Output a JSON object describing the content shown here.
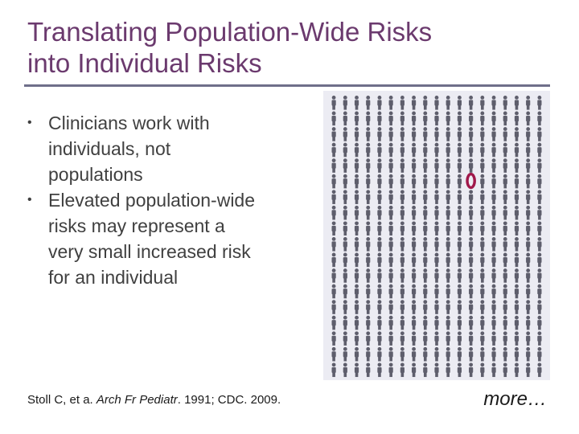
{
  "slide": {
    "title_line1": "Translating Population-Wide Risks",
    "title_line2": "into Individual Risks",
    "bullets": [
      {
        "marker": "•",
        "lines": [
          "Clinicians work with",
          "individuals, not",
          "populations"
        ]
      },
      {
        "marker": "•",
        "lines": [
          "Elevated population-wide",
          "risks may represent a",
          "very small increased risk",
          "for an individual"
        ]
      }
    ],
    "citation": {
      "authors": "Stoll C, et a. ",
      "journal": "Arch Fr Pediatr",
      "rest": ". 1991; CDC. 2009."
    },
    "more_label": "more…"
  },
  "figure": {
    "rows": 18,
    "cols": 19,
    "highlighted_row": 5,
    "highlighted_col": 12,
    "person_color": "#5e5e6c",
    "highlight_color": "#a0174a",
    "background": "#ececf3"
  }
}
